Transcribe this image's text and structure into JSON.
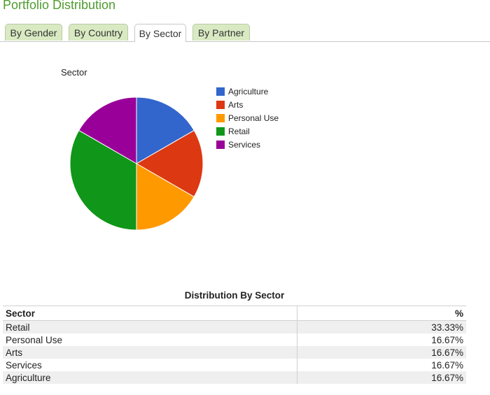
{
  "page": {
    "title": "Portfolio Distribution"
  },
  "tabs": [
    {
      "label": "By Gender",
      "active": false
    },
    {
      "label": "By Country",
      "active": false
    },
    {
      "label": "By Sector",
      "active": true
    },
    {
      "label": "By Partner",
      "active": false
    }
  ],
  "chart_data": {
    "type": "pie",
    "title": "Sector",
    "legend_position": "right",
    "categories": [
      "Agriculture",
      "Arts",
      "Personal Use",
      "Retail",
      "Services"
    ],
    "values": [
      16.67,
      16.67,
      16.67,
      33.33,
      16.67
    ],
    "colors": [
      "#3366cc",
      "#dc3912",
      "#ff9900",
      "#109618",
      "#990099"
    ]
  },
  "table": {
    "title": "Distribution By Sector",
    "columns": [
      "Sector",
      "%"
    ],
    "rows": [
      [
        "Retail",
        "33.33%"
      ],
      [
        "Personal Use",
        "16.67%"
      ],
      [
        "Arts",
        "16.67%"
      ],
      [
        "Services",
        "16.67%"
      ],
      [
        "Agriculture",
        "16.67%"
      ]
    ]
  }
}
